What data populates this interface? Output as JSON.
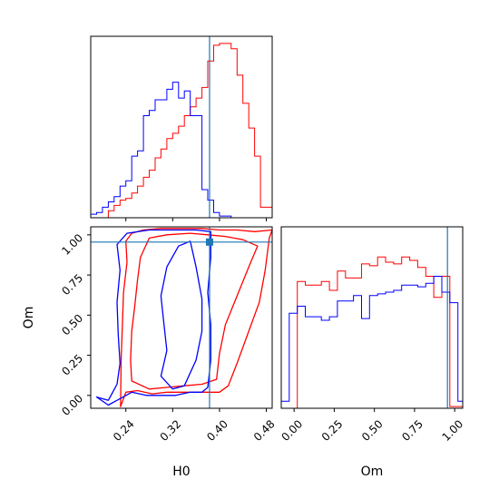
{
  "chart_data": {
    "type": "corner",
    "parameters": [
      "H0",
      "Om"
    ],
    "truth": {
      "H0": 0.383,
      "Om": 0.955
    },
    "colors": {
      "series_a": "#ff0000",
      "series_b": "#0000ff",
      "truth": "#1f77b4",
      "frame": "#000000"
    },
    "grid": false,
    "xlim_H0": [
      0.18,
      0.49
    ],
    "xlim_Om": [
      -0.08,
      1.05
    ],
    "ylim_Om": [
      -0.08,
      1.05
    ],
    "ticks_H0": [
      "0.24",
      "0.32",
      "0.40",
      "0.48"
    ],
    "ticks_Om": [
      "0.00",
      "0.25",
      "0.50",
      "0.75",
      "1.00"
    ],
    "xlabel_H0": "H0",
    "xlabel_Om": "Om",
    "ylabel_Om": "Om",
    "hist_H0": {
      "bin_edges": [
        0.18,
        0.19,
        0.2,
        0.21,
        0.22,
        0.23,
        0.24,
        0.25,
        0.26,
        0.27,
        0.28,
        0.29,
        0.3,
        0.31,
        0.32,
        0.33,
        0.34,
        0.35,
        0.36,
        0.37,
        0.38,
        0.39,
        0.4,
        0.41,
        0.42,
        0.43,
        0.44,
        0.45,
        0.46,
        0.47,
        0.48,
        0.49
      ],
      "series": [
        {
          "values": [
            0,
            0,
            0,
            0.04,
            0.07,
            0.1,
            0.11,
            0.14,
            0.18,
            0.23,
            0.27,
            0.34,
            0.39,
            0.45,
            0.48,
            0.52,
            0.58,
            0.63,
            0.68,
            0.74,
            0.89,
            0.98,
            0.99,
            0.99,
            0.96,
            0.81,
            0.65,
            0.51,
            0.35,
            0.06,
            0.06
          ]
        },
        {
          "values": [
            0.02,
            0.03,
            0.06,
            0.09,
            0.12,
            0.18,
            0.21,
            0.35,
            0.38,
            0.58,
            0.61,
            0.67,
            0.67,
            0.73,
            0.77,
            0.68,
            0.72,
            0.58,
            0.58,
            0.16,
            0.1,
            0.03,
            0.01,
            0.01,
            0,
            0,
            0,
            0,
            0,
            0,
            0
          ]
        }
      ]
    },
    "hist_Om": {
      "bin_edges": [
        -0.08,
        -0.03,
        0.02,
        0.07,
        0.12,
        0.17,
        0.22,
        0.27,
        0.32,
        0.37,
        0.42,
        0.47,
        0.52,
        0.57,
        0.62,
        0.67,
        0.72,
        0.77,
        0.82,
        0.87,
        0.92,
        0.97,
        1.02,
        1.05
      ],
      "series": [
        {
          "values": [
            0,
            0,
            0.72,
            0.7,
            0.7,
            0.72,
            0.67,
            0.78,
            0.74,
            0.74,
            0.82,
            0.81,
            0.86,
            0.83,
            0.82,
            0.86,
            0.84,
            0.8,
            0.75,
            0.63,
            0.75,
            0.01,
            0.01
          ]
        },
        {
          "values": [
            0.04,
            0.54,
            0.58,
            0.52,
            0.52,
            0.5,
            0.52,
            0.61,
            0.61,
            0.64,
            0.51,
            0.64,
            0.65,
            0.66,
            0.67,
            0.7,
            0.7,
            0.69,
            0.71,
            0.75,
            0.66,
            0.6,
            0.04
          ]
        }
      ]
    },
    "contours": [
      [
        [
          [
            0.231,
            -0.07
          ],
          [
            0.24,
            0.02
          ],
          [
            0.26,
            0.03
          ],
          [
            0.285,
            0.01
          ],
          [
            0.31,
            0.02
          ],
          [
            0.34,
            0.02
          ],
          [
            0.37,
            0.02
          ],
          [
            0.4,
            0.02
          ],
          [
            0.415,
            0.06
          ],
          [
            0.43,
            0.2
          ],
          [
            0.45,
            0.4
          ],
          [
            0.468,
            0.58
          ],
          [
            0.478,
            0.78
          ],
          [
            0.485,
            0.98
          ],
          [
            0.49,
            1.03
          ],
          [
            0.46,
            1.02
          ],
          [
            0.43,
            1.03
          ],
          [
            0.4,
            1.03
          ],
          [
            0.37,
            1.04
          ],
          [
            0.34,
            1.04
          ],
          [
            0.3,
            1.04
          ],
          [
            0.27,
            1.03
          ],
          [
            0.25,
            1.01
          ],
          [
            0.24,
            0.96
          ],
          [
            0.242,
            0.83
          ],
          [
            0.236,
            0.64
          ],
          [
            0.234,
            0.42
          ],
          [
            0.232,
            0.22
          ],
          [
            0.231,
            -0.07
          ]
        ],
        [
          [
            0.25,
            0.09
          ],
          [
            0.28,
            0.04
          ],
          [
            0.31,
            0.05
          ],
          [
            0.34,
            0.06
          ],
          [
            0.37,
            0.07
          ],
          [
            0.395,
            0.1
          ],
          [
            0.4,
            0.26
          ],
          [
            0.41,
            0.44
          ],
          [
            0.43,
            0.62
          ],
          [
            0.45,
            0.8
          ],
          [
            0.465,
            0.93
          ],
          [
            0.44,
            0.97
          ],
          [
            0.41,
            0.99
          ],
          [
            0.38,
            1.0
          ],
          [
            0.35,
            1.01
          ],
          [
            0.31,
            1.0
          ],
          [
            0.28,
            0.98
          ],
          [
            0.265,
            0.86
          ],
          [
            0.26,
            0.72
          ],
          [
            0.255,
            0.55
          ],
          [
            0.25,
            0.4
          ],
          [
            0.248,
            0.22
          ],
          [
            0.25,
            0.09
          ]
        ]
      ],
      [
        [
          [
            0.19,
            -0.01
          ],
          [
            0.21,
            -0.03
          ],
          [
            0.225,
            0.07
          ],
          [
            0.23,
            0.2
          ],
          [
            0.227,
            0.38
          ],
          [
            0.225,
            0.58
          ],
          [
            0.23,
            0.78
          ],
          [
            0.225,
            0.94
          ],
          [
            0.242,
            1.01
          ],
          [
            0.28,
            1.03
          ],
          [
            0.32,
            1.03
          ],
          [
            0.36,
            1.03
          ],
          [
            0.385,
            1.02
          ],
          [
            0.385,
            0.86
          ],
          [
            0.38,
            0.64
          ],
          [
            0.385,
            0.44
          ],
          [
            0.385,
            0.22
          ],
          [
            0.38,
            0.05
          ],
          [
            0.37,
            0.02
          ],
          [
            0.35,
            0.02
          ],
          [
            0.325,
            0.0
          ],
          [
            0.3,
            0.0
          ],
          [
            0.275,
            0.0
          ],
          [
            0.25,
            0.02
          ],
          [
            0.23,
            -0.02
          ],
          [
            0.21,
            -0.06
          ],
          [
            0.19,
            -0.01
          ]
        ],
        [
          [
            0.3,
            0.12
          ],
          [
            0.31,
            0.28
          ],
          [
            0.305,
            0.45
          ],
          [
            0.3,
            0.62
          ],
          [
            0.31,
            0.8
          ],
          [
            0.33,
            0.93
          ],
          [
            0.35,
            0.96
          ],
          [
            0.36,
            0.8
          ],
          [
            0.37,
            0.6
          ],
          [
            0.37,
            0.4
          ],
          [
            0.36,
            0.22
          ],
          [
            0.34,
            0.06
          ],
          [
            0.32,
            0.04
          ],
          [
            0.3,
            0.12
          ]
        ]
      ]
    ]
  }
}
